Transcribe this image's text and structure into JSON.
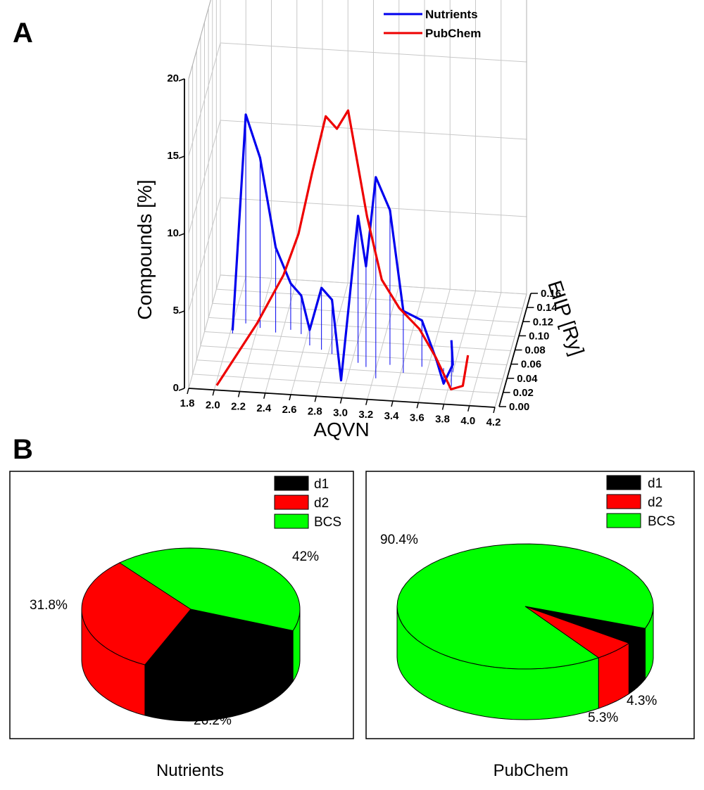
{
  "figure": {
    "panel_a_label": "A",
    "panel_b_label": "B"
  },
  "colors": {
    "nutrients": "#0000ee",
    "pubchem": "#ee0000",
    "d1": "#000000",
    "d2": "#ff0000",
    "bcs": "#00ff00"
  },
  "chart_data": [
    {
      "type": "line",
      "subtype": "3d-line",
      "title": "",
      "xlabel": "AQVN",
      "ylabel": "EIIP [Ry]",
      "zlabel": "Compounds [%]",
      "xlim": [
        1.8,
        4.2
      ],
      "ylim": [
        0.0,
        0.16
      ],
      "zlim": [
        0,
        20
      ],
      "x_ticks": [
        "1.8",
        "2.0",
        "2.2",
        "2.4",
        "2.6",
        "2.8",
        "3.0",
        "3.2",
        "3.4",
        "3.6",
        "3.8",
        "4.0",
        "4.2"
      ],
      "y_ticks": [
        "0.00",
        "0.02",
        "0.04",
        "0.06",
        "0.08",
        "0.10",
        "0.12",
        "0.14",
        "0.16"
      ],
      "z_ticks": [
        "0",
        "5",
        "10",
        "15",
        "20"
      ],
      "legend": {
        "position": "top-right",
        "entries": [
          "Nutrients",
          "PubChem"
        ]
      },
      "series": [
        {
          "name": "Nutrients",
          "x": [
            2.02,
            2.1,
            2.22,
            2.35,
            2.46,
            2.55,
            2.64,
            2.74,
            2.83,
            2.94,
            3.05,
            3.12,
            3.22,
            3.3,
            3.42,
            3.55,
            3.65,
            3.72,
            3.8,
            3.82
          ],
          "y": [
            0.08,
            0.095,
            0.09,
            0.085,
            0.09,
            0.085,
            0.07,
            0.065,
            0.06,
            0.035,
            0.05,
            0.045,
            0.03,
            0.05,
            0.04,
            0.05,
            0.06,
            0.05,
            0.045,
            0.025
          ],
          "values": [
            0.2,
            13.5,
            11.0,
            5.5,
            3.0,
            2.5,
            1.0,
            4.0,
            3.5,
            -0.5,
            9.5,
            6.5,
            13.0,
            10.0,
            4.0,
            3.0,
            0.0,
            -1.0,
            0.5,
            3.0
          ]
        },
        {
          "name": "PubChem",
          "x": [
            2.02,
            2.32,
            2.52,
            2.63,
            2.72,
            2.82,
            2.9,
            2.98,
            3.12,
            3.22,
            3.35,
            3.5,
            3.62,
            3.74,
            3.84,
            3.88
          ],
          "y": [
            0.0,
            0.01,
            0.015,
            0.02,
            0.03,
            0.035,
            0.04,
            0.045,
            0.05,
            0.06,
            0.065,
            0.07,
            0.075,
            0.075,
            0.07,
            0.07
          ],
          "values": [
            0.3,
            4.0,
            7.0,
            9.5,
            13.0,
            16.5,
            15.5,
            16.5,
            9.5,
            5.0,
            3.0,
            1.5,
            -0.5,
            -2.5,
            -2.0,
            0.0
          ]
        }
      ]
    },
    {
      "type": "pie",
      "title": "Nutrients",
      "categories": [
        "d1",
        "d2",
        "BCS"
      ],
      "values": [
        26.2,
        31.8,
        42
      ],
      "value_labels": [
        "26.2%",
        "31.8%",
        "42%"
      ],
      "legend": {
        "position": "top-right",
        "entries": [
          "d1",
          "d2",
          "BCS"
        ]
      }
    },
    {
      "type": "pie",
      "title": "PubChem",
      "categories": [
        "d1",
        "d2",
        "BCS"
      ],
      "values": [
        4.3,
        5.3,
        90.4
      ],
      "value_labels": [
        "4.3%",
        "5.3%",
        "90.4%"
      ],
      "legend": {
        "position": "top-right",
        "entries": [
          "d1",
          "d2",
          "BCS"
        ]
      }
    }
  ]
}
